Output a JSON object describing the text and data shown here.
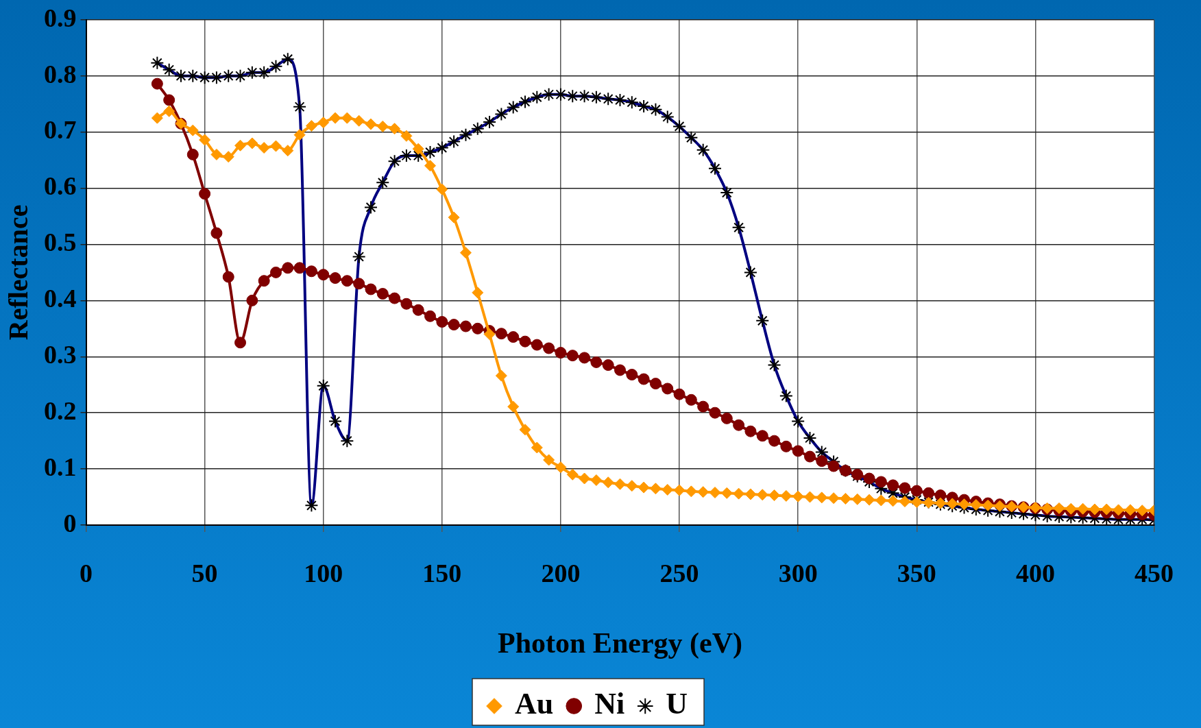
{
  "chart_data": {
    "type": "line",
    "xlabel": "Photon Energy (eV)",
    "ylabel": "Reflectance",
    "x": [
      30,
      35,
      40,
      45,
      50,
      55,
      60,
      65,
      70,
      75,
      80,
      85,
      90,
      95,
      100,
      105,
      110,
      115,
      120,
      125,
      130,
      135,
      140,
      145,
      150,
      155,
      160,
      165,
      170,
      175,
      180,
      185,
      190,
      195,
      200,
      205,
      210,
      215,
      220,
      225,
      230,
      235,
      240,
      245,
      250,
      255,
      260,
      265,
      270,
      275,
      280,
      285,
      290,
      295,
      300,
      305,
      310,
      315,
      320,
      325,
      330,
      335,
      340,
      345,
      350,
      355,
      360,
      365,
      370,
      375,
      380,
      385,
      390,
      395,
      400,
      405,
      410,
      415,
      420,
      425,
      430,
      435,
      440,
      445,
      450
    ],
    "series": [
      {
        "name": "Au",
        "color": "#ff9900",
        "marker": "diamond",
        "values": [
          0.725,
          0.737,
          0.715,
          0.703,
          0.686,
          0.66,
          0.656,
          0.676,
          0.68,
          0.672,
          0.675,
          0.667,
          0.695,
          0.711,
          0.717,
          0.725,
          0.725,
          0.72,
          0.714,
          0.71,
          0.706,
          0.693,
          0.67,
          0.64,
          0.598,
          0.548,
          0.485,
          0.414,
          0.34,
          0.266,
          0.211,
          0.17,
          0.138,
          0.116,
          0.103,
          0.09,
          0.083,
          0.08,
          0.076,
          0.073,
          0.07,
          0.067,
          0.065,
          0.063,
          0.062,
          0.06,
          0.059,
          0.058,
          0.057,
          0.056,
          0.055,
          0.054,
          0.053,
          0.052,
          0.051,
          0.05,
          0.049,
          0.048,
          0.047,
          0.046,
          0.045,
          0.044,
          0.043,
          0.042,
          0.041,
          0.04,
          0.039,
          0.038,
          0.037,
          0.036,
          0.035,
          0.034,
          0.033,
          0.032,
          0.031,
          0.03,
          0.03,
          0.029,
          0.029,
          0.028,
          0.028,
          0.027,
          0.027,
          0.026,
          0.026
        ]
      },
      {
        "name": "Ni",
        "color": "#800000",
        "marker": "circle",
        "values": [
          0.786,
          0.757,
          0.715,
          0.66,
          0.59,
          0.52,
          0.442,
          0.325,
          0.4,
          0.435,
          0.45,
          0.458,
          0.458,
          0.452,
          0.446,
          0.44,
          0.435,
          0.43,
          0.42,
          0.412,
          0.404,
          0.394,
          0.383,
          0.372,
          0.362,
          0.357,
          0.354,
          0.35,
          0.346,
          0.341,
          0.335,
          0.327,
          0.321,
          0.315,
          0.307,
          0.302,
          0.298,
          0.29,
          0.285,
          0.276,
          0.268,
          0.26,
          0.252,
          0.243,
          0.233,
          0.223,
          0.211,
          0.2,
          0.19,
          0.178,
          0.167,
          0.159,
          0.15,
          0.14,
          0.132,
          0.122,
          0.114,
          0.105,
          0.097,
          0.09,
          0.083,
          0.077,
          0.071,
          0.066,
          0.061,
          0.057,
          0.053,
          0.049,
          0.045,
          0.042,
          0.039,
          0.037,
          0.034,
          0.032,
          0.03,
          0.028,
          0.026,
          0.025,
          0.024,
          0.023,
          0.022,
          0.021,
          0.02,
          0.019,
          0.018
        ]
      },
      {
        "name": "U",
        "color": "#000080",
        "marker": "cross",
        "values": [
          0.823,
          0.811,
          0.8,
          0.8,
          0.797,
          0.797,
          0.8,
          0.8,
          0.806,
          0.806,
          0.817,
          0.83,
          0.745,
          0.035,
          0.248,
          0.185,
          0.15,
          0.478,
          0.566,
          0.61,
          0.648,
          0.658,
          0.658,
          0.664,
          0.672,
          0.683,
          0.695,
          0.706,
          0.718,
          0.732,
          0.744,
          0.754,
          0.762,
          0.767,
          0.767,
          0.764,
          0.764,
          0.762,
          0.759,
          0.757,
          0.753,
          0.746,
          0.74,
          0.727,
          0.71,
          0.69,
          0.668,
          0.635,
          0.592,
          0.53,
          0.45,
          0.364,
          0.285,
          0.23,
          0.185,
          0.155,
          0.13,
          0.113,
          0.097,
          0.087,
          0.077,
          0.065,
          0.057,
          0.05,
          0.045,
          0.041,
          0.037,
          0.034,
          0.031,
          0.028,
          0.026,
          0.024,
          0.022,
          0.02,
          0.018,
          0.016,
          0.015,
          0.014,
          0.013,
          0.012,
          0.011,
          0.01,
          0.01,
          0.01,
          0.009
        ]
      }
    ],
    "xlim": [
      0,
      450
    ],
    "xticks": [
      0,
      50,
      100,
      150,
      200,
      250,
      300,
      350,
      400,
      450
    ],
    "ylim": [
      0,
      0.9
    ],
    "yticks": [
      0,
      0.1,
      0.2,
      0.3,
      0.4,
      0.5,
      0.6,
      0.7,
      0.8,
      0.9
    ],
    "grid": true,
    "legend": "bottom",
    "line_style": "solid"
  }
}
